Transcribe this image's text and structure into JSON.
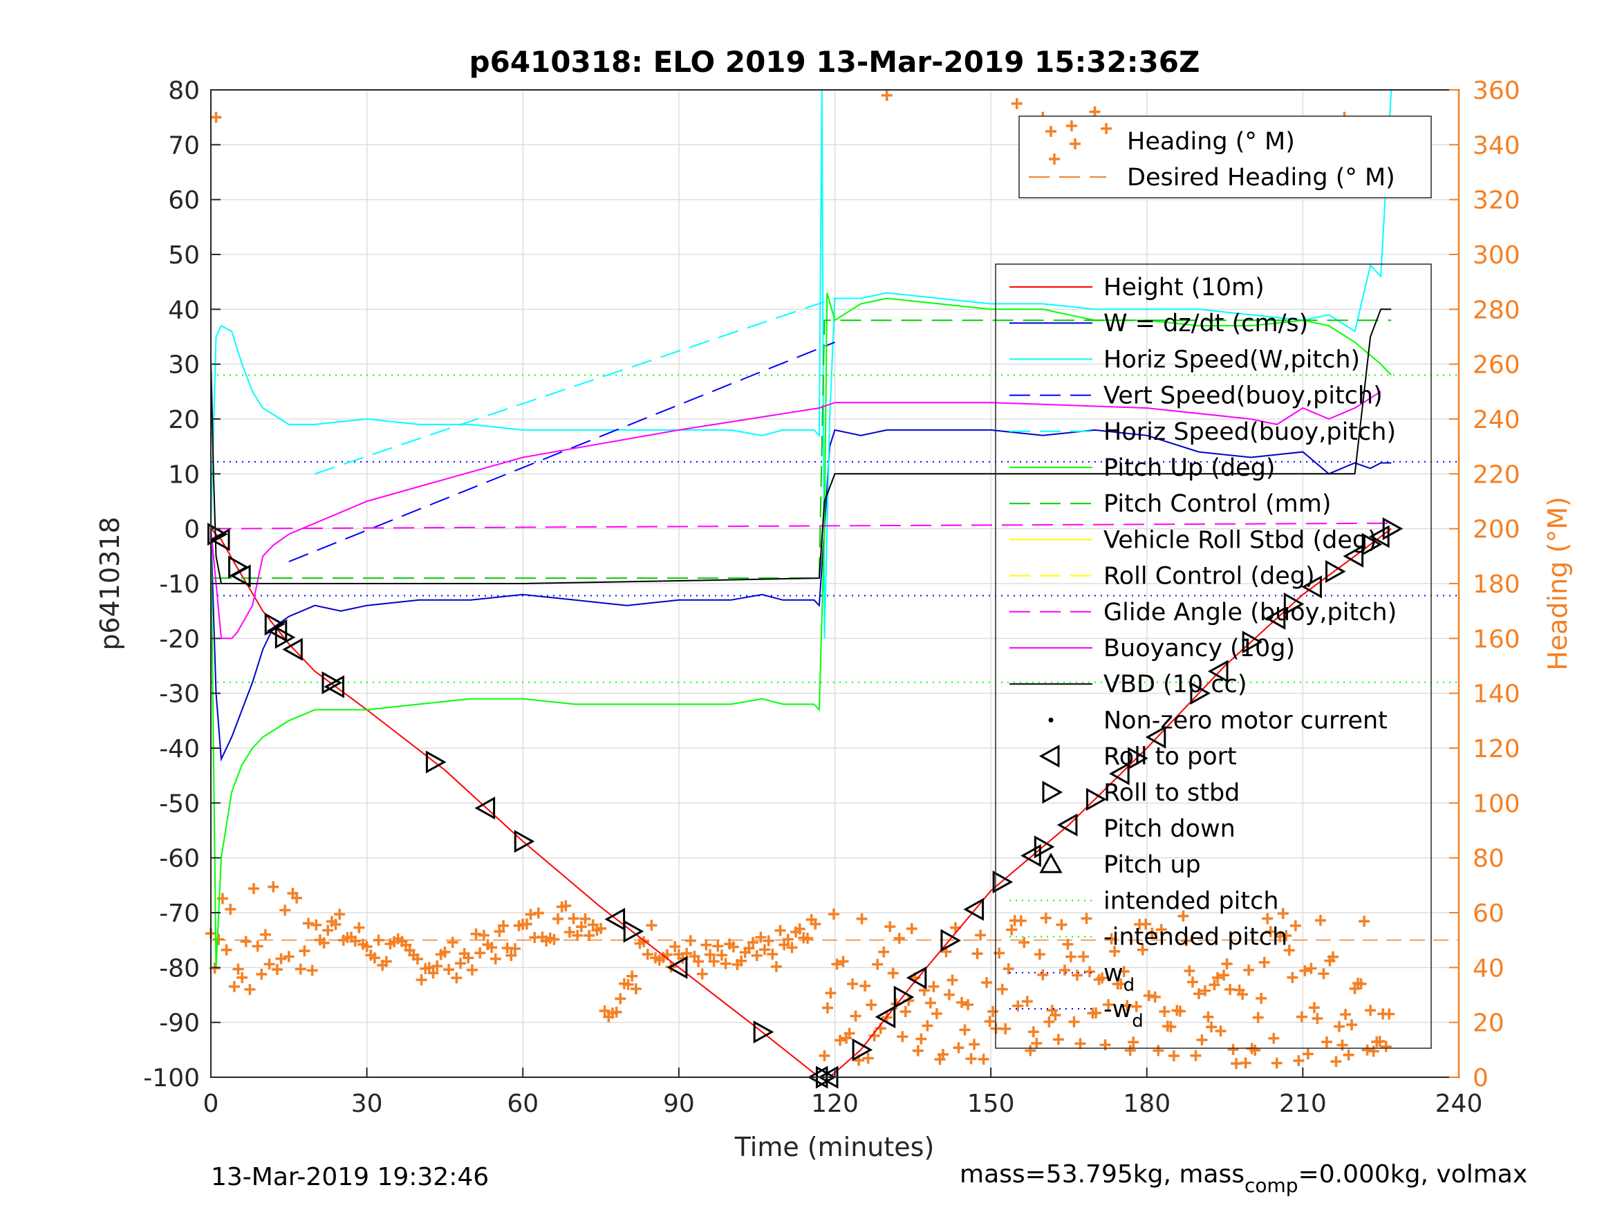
{
  "chart_data": {
    "type": "line",
    "title": "p6410318: ELO 2019 13-Mar-2019 15:32:36Z",
    "xlabel": "Time (minutes)",
    "ylabel": "p6410318",
    "ylabel_right": "Heading (°M)",
    "xlim": [
      0,
      240
    ],
    "ylim": [
      -100,
      80
    ],
    "ylim_right": [
      0,
      360
    ],
    "xticks": [
      "0",
      "30",
      "60",
      "90",
      "120",
      "150",
      "180",
      "210",
      "240"
    ],
    "yticks": [
      "80",
      "70",
      "60",
      "50",
      "40",
      "30",
      "20",
      "10",
      "0",
      "-10",
      "-20",
      "-30",
      "-40",
      "-50",
      "-60",
      "-70",
      "-80",
      "-90",
      "-100"
    ],
    "yticks_right": [
      "360",
      "340",
      "320",
      "300",
      "280",
      "260",
      "240",
      "220",
      "200",
      "180",
      "160",
      "140",
      "120",
      "100",
      "80",
      "60",
      "40",
      "20",
      "0"
    ],
    "grid": true,
    "legend_top": [
      {
        "label": "Heading (° M)",
        "style": "marker-plus",
        "color": "#f48024"
      },
      {
        "label": "Desired Heading (° M)",
        "style": "dashed",
        "color": "#f48024"
      }
    ],
    "legend_main": [
      {
        "label": "Height (10m)",
        "style": "solid",
        "color": "#ff0000"
      },
      {
        "label": "W = dz/dt (cm/s)",
        "style": "solid",
        "color": "#0000cc"
      },
      {
        "label": "Horiz Speed(W,pitch)",
        "style": "solid",
        "color": "#00ffff"
      },
      {
        "label": "Vert Speed(buoy,pitch)",
        "style": "dashed",
        "color": "#0000ff"
      },
      {
        "label": "Horiz Speed(buoy,pitch)",
        "style": "dashed",
        "color": "#00ffff"
      },
      {
        "label": "Pitch Up (deg)",
        "style": "solid",
        "color": "#00ff00"
      },
      {
        "label": "Pitch Control (mm)",
        "style": "dashed",
        "color": "#00cc00"
      },
      {
        "label": "Vehicle Roll Stbd (deg)",
        "style": "solid",
        "color": "#ffff00"
      },
      {
        "label": "Roll Control (deg)",
        "style": "dashed",
        "color": "#ffff00"
      },
      {
        "label": "Glide Angle (buoy,pitch)",
        "style": "dashed",
        "color": "#ff00ff"
      },
      {
        "label": "Buoyancy (10g)",
        "style": "solid",
        "color": "#ff00ff"
      },
      {
        "label": "VBD (10 cc)",
        "style": "solid",
        "color": "#000000"
      },
      {
        "label": "Non-zero motor current",
        "style": "marker-dot",
        "color": "#000000"
      },
      {
        "label": "Roll to port",
        "style": "marker-tri-left",
        "color": "#000000"
      },
      {
        "label": "Roll to stbd",
        "style": "marker-tri-right",
        "color": "#000000"
      },
      {
        "label": "Pitch down",
        "style": "marker-tri-down",
        "color": "#000000"
      },
      {
        "label": "Pitch up",
        "style": "marker-tri-up",
        "color": "#000000"
      },
      {
        "label": "intended pitch",
        "style": "dotted",
        "color": "#00ff00"
      },
      {
        "label": "-intended pitch",
        "style": "dotted",
        "color": "#00ff00"
      },
      {
        "label": "w",
        "sub": "d",
        "style": "dotted",
        "color": "#0000ff"
      },
      {
        "label": "-w",
        "sub": "d",
        "style": "dotted",
        "color": "#0000ff"
      }
    ],
    "reference_lines": [
      {
        "name": "intended pitch",
        "y": 28,
        "color": "#00ff00"
      },
      {
        "name": "-intended pitch",
        "y": -28,
        "color": "#00ff00"
      },
      {
        "name": "w_d",
        "y": 12.2,
        "color": "#0000ff"
      },
      {
        "name": "-w_d",
        "y": -12.2,
        "color": "#0000ff"
      }
    ],
    "series": [
      {
        "name": "Height (10m)",
        "color": "#ff0000",
        "x": [
          0,
          2,
          5,
          10,
          15,
          20,
          30,
          45,
          60,
          75,
          90,
          105,
          117,
          119,
          125,
          135,
          150,
          165,
          180,
          195,
          210,
          220,
          227
        ],
        "y": [
          0,
          -2,
          -7,
          -15,
          -21,
          -26,
          -33,
          -44,
          -57,
          -69,
          -80,
          -91,
          -100,
          -100,
          -95,
          -83,
          -66,
          -54,
          -40,
          -25,
          -12,
          -5,
          0
        ]
      },
      {
        "name": "W = dz/dt (cm/s)",
        "color": "#0000cc",
        "x": [
          0,
          1,
          2,
          4,
          6,
          8,
          10,
          12,
          15,
          20,
          25,
          30,
          40,
          50,
          60,
          70,
          80,
          90,
          100,
          106,
          110,
          116,
          117,
          118,
          119,
          120,
          125,
          130,
          140,
          150,
          160,
          170,
          180,
          190,
          200,
          210,
          215,
          220,
          223,
          225,
          227
        ],
        "y": [
          0,
          -30,
          -42,
          -38,
          -33,
          -28,
          -22,
          -18,
          -16,
          -14,
          -15,
          -14,
          -13,
          -13,
          -12,
          -13,
          -14,
          -13,
          -13,
          -12,
          -13,
          -13,
          -14,
          0,
          15,
          18,
          17,
          18,
          18,
          18,
          17,
          18,
          17,
          14,
          13,
          14,
          10,
          12,
          11,
          12,
          12
        ]
      },
      {
        "name": "Horiz Speed(W,pitch)",
        "color": "#00ffff",
        "x": [
          0,
          1,
          2,
          4,
          6,
          8,
          10,
          15,
          20,
          30,
          40,
          50,
          60,
          70,
          80,
          90,
          100,
          106,
          110,
          116,
          117,
          117.5,
          118,
          119,
          120,
          125,
          130,
          140,
          150,
          160,
          170,
          180,
          190,
          200,
          210,
          215,
          220,
          223,
          225,
          227
        ],
        "y": [
          0,
          35,
          37,
          36,
          30,
          25,
          22,
          19,
          19,
          20,
          19,
          19,
          18,
          18,
          18,
          18,
          18,
          17,
          18,
          18,
          17,
          80,
          -20,
          20,
          42,
          42,
          43,
          42,
          41,
          41,
          40,
          40,
          40,
          39,
          38,
          39,
          36,
          48,
          46,
          80
        ]
      },
      {
        "name": "Vert Speed(buoy,pitch)",
        "color": "#0000ff",
        "dash": true,
        "x": [
          15,
          120
        ],
        "y": [
          -6,
          34
        ]
      },
      {
        "name": "Horiz Speed(buoy,pitch)",
        "color": "#00ffff",
        "dash": true,
        "x": [
          20,
          120
        ],
        "y": [
          10,
          42
        ]
      },
      {
        "name": "Pitch Up (deg)",
        "color": "#00ff00",
        "x": [
          0,
          1,
          2,
          4,
          6,
          8,
          10,
          15,
          20,
          30,
          40,
          50,
          60,
          70,
          80,
          90,
          100,
          106,
          110,
          116,
          117,
          118,
          118.5,
          120,
          125,
          130,
          140,
          150,
          160,
          170,
          180,
          190,
          200,
          210,
          215,
          220,
          225,
          227
        ],
        "y": [
          0,
          -80,
          -60,
          -48,
          -43,
          -40,
          -38,
          -35,
          -33,
          -33,
          -32,
          -31,
          -31,
          -32,
          -32,
          -32,
          -32,
          -31,
          -32,
          -32,
          -33,
          0,
          43,
          38,
          41,
          42,
          41,
          40,
          40,
          38,
          38,
          37,
          37,
          38,
          37,
          34,
          30,
          28
        ]
      },
      {
        "name": "Pitch Control (mm)",
        "color": "#00cc00",
        "dash": true,
        "x": [
          0,
          10,
          117,
          118,
          227
        ],
        "y": [
          -9,
          -9,
          -9,
          38,
          38
        ]
      },
      {
        "name": "Glide Angle (buoy,pitch)",
        "color": "#ff00ff",
        "dash": true,
        "x": [
          0,
          227
        ],
        "y": [
          0,
          1
        ]
      },
      {
        "name": "Buoyancy (10g)",
        "color": "#ff00ff",
        "x": [
          0,
          2,
          4,
          5,
          8,
          10,
          12,
          15,
          30,
          60,
          90,
          117,
          120,
          150,
          180,
          200,
          205,
          210,
          215,
          220,
          225
        ],
        "y": [
          0,
          -20,
          -20,
          -19,
          -14,
          -5,
          -3,
          -1,
          5,
          13,
          18,
          22,
          23,
          23,
          22,
          20,
          19,
          22,
          20,
          22,
          25
        ]
      },
      {
        "name": "VBD (10 cc)",
        "color": "#000000",
        "x": [
          0,
          0.5,
          1,
          2,
          3,
          15,
          30,
          60,
          90,
          117,
          118,
          120,
          150,
          180,
          210,
          215,
          220,
          223,
          225,
          227
        ],
        "y": [
          31,
          10,
          -5,
          -10,
          -10,
          -10,
          -10,
          -10,
          -9.5,
          -9,
          5,
          10,
          10,
          10,
          10,
          10,
          10,
          35,
          40,
          40
        ]
      }
    ],
    "heading_desired": 50
  }
}
